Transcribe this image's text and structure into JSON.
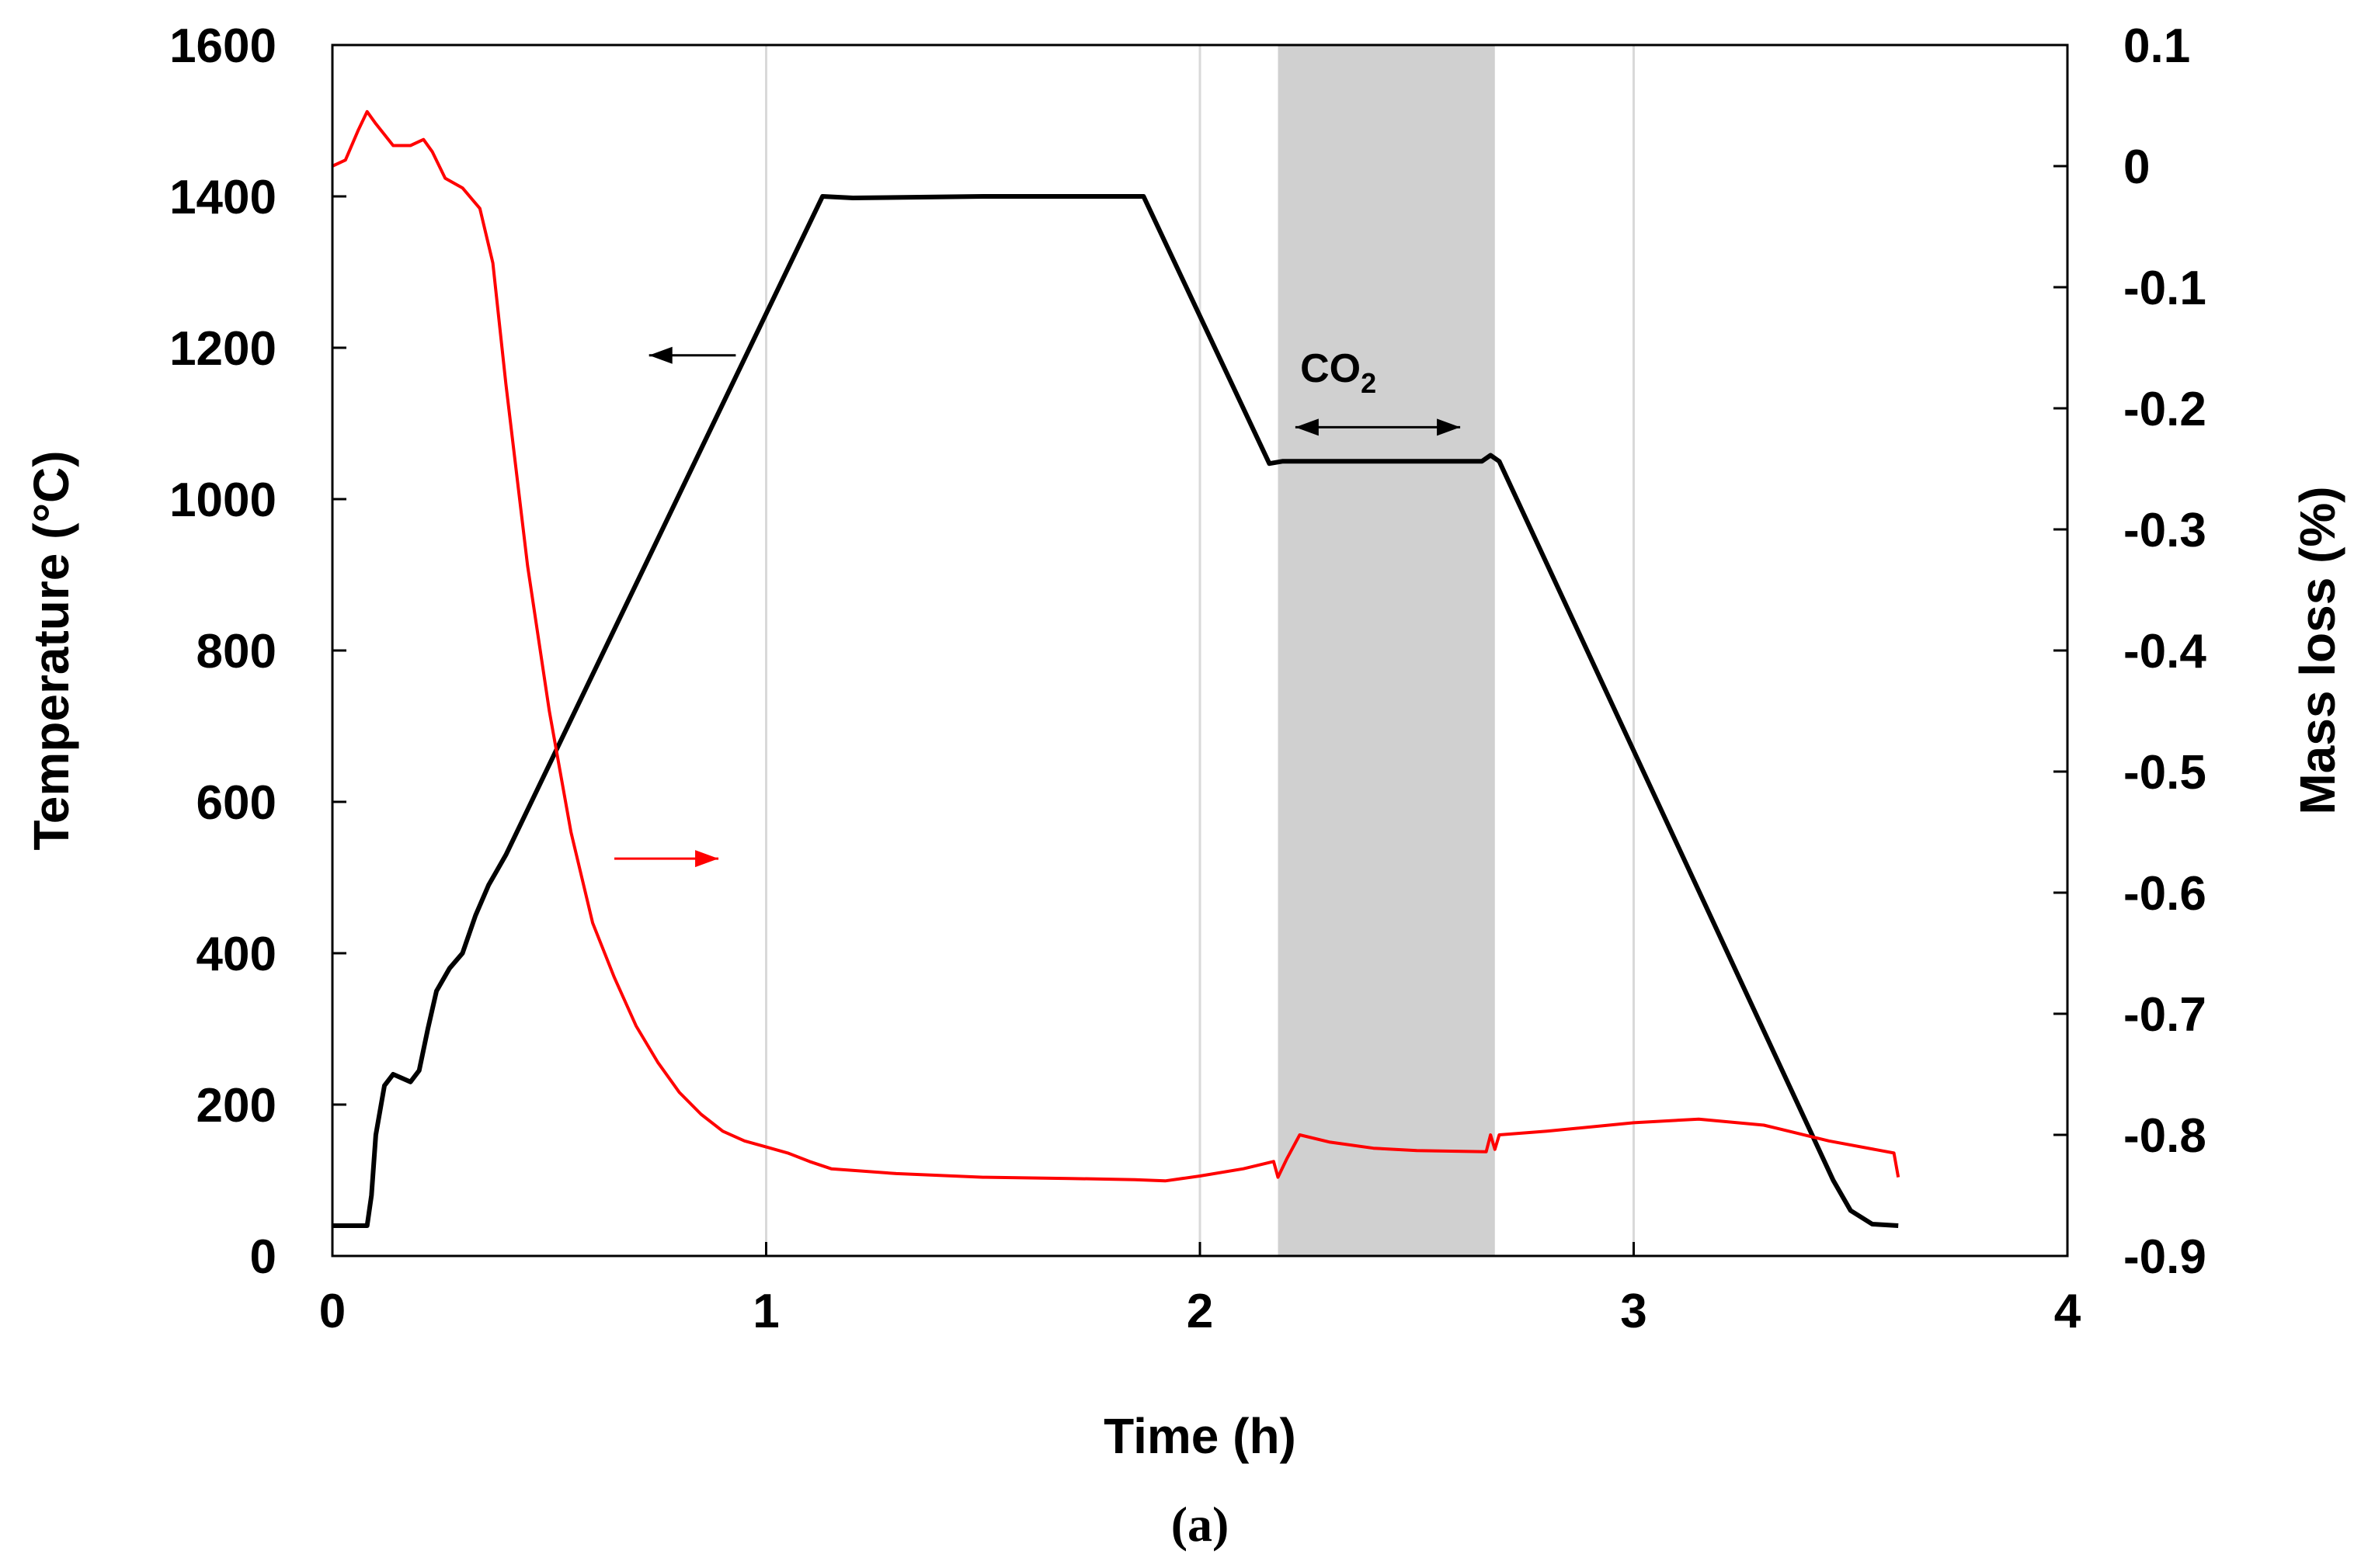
{
  "chart_data": {
    "type": "line",
    "caption": "(a)",
    "xlabel": "Time (h)",
    "ylabel_left": "Temperature (°C)",
    "ylabel_right": "Mass loss (%)",
    "xlim": [
      0,
      4
    ],
    "ylim_left": [
      0,
      1600
    ],
    "ylim_right": [
      -0.9,
      0.1
    ],
    "x_ticks": [
      "0",
      "1",
      "2",
      "3",
      "4"
    ],
    "y_left_ticks": [
      "0",
      "200",
      "400",
      "600",
      "800",
      "1000",
      "1200",
      "1400",
      "1600"
    ],
    "y_right_ticks": [
      "-0.9",
      "-0.8",
      "-0.7",
      "-0.6",
      "-0.5",
      "-0.4",
      "-0.3",
      "-0.2",
      "-0.1",
      "0",
      "0.1"
    ],
    "grid": "vertical",
    "shaded_region": {
      "x_start": 2.18,
      "x_end": 2.68,
      "label_main": "CO",
      "label_sub": "2",
      "color": "#d0d0d0"
    },
    "series": [
      {
        "name": "Temperature",
        "axis": "left",
        "color": "#000000",
        "points": [
          [
            0,
            40
          ],
          [
            0.08,
            40
          ],
          [
            0.09,
            80
          ],
          [
            0.1,
            160
          ],
          [
            0.12,
            225
          ],
          [
            0.14,
            240
          ],
          [
            0.16,
            235
          ],
          [
            0.18,
            230
          ],
          [
            0.2,
            245
          ],
          [
            0.22,
            300
          ],
          [
            0.24,
            350
          ],
          [
            0.27,
            380
          ],
          [
            0.3,
            400
          ],
          [
            0.33,
            450
          ],
          [
            0.36,
            490
          ],
          [
            0.4,
            530
          ],
          [
            1.13,
            1400
          ],
          [
            1.2,
            1398
          ],
          [
            1.5,
            1400
          ],
          [
            1.87,
            1400
          ],
          [
            2.16,
            1047
          ],
          [
            2.19,
            1050
          ],
          [
            2.3,
            1050
          ],
          [
            2.65,
            1050
          ],
          [
            2.67,
            1058
          ],
          [
            2.69,
            1050
          ],
          [
            3.46,
            100
          ],
          [
            3.5,
            60
          ],
          [
            3.55,
            42
          ],
          [
            3.61,
            40
          ]
        ]
      },
      {
        "name": "Mass loss",
        "axis": "right",
        "color": "#ff0000",
        "points": [
          [
            0,
            0
          ],
          [
            0.03,
            0.005
          ],
          [
            0.06,
            0.03
          ],
          [
            0.08,
            0.045
          ],
          [
            0.1,
            0.035
          ],
          [
            0.14,
            0.017
          ],
          [
            0.18,
            0.017
          ],
          [
            0.21,
            0.022
          ],
          [
            0.23,
            0.012
          ],
          [
            0.26,
            -0.01
          ],
          [
            0.3,
            -0.018
          ],
          [
            0.34,
            -0.035
          ],
          [
            0.37,
            -0.08
          ],
          [
            0.4,
            -0.18
          ],
          [
            0.45,
            -0.33
          ],
          [
            0.5,
            -0.45
          ],
          [
            0.55,
            -0.55
          ],
          [
            0.6,
            -0.625
          ],
          [
            0.65,
            -0.67
          ],
          [
            0.7,
            -0.71
          ],
          [
            0.75,
            -0.74
          ],
          [
            0.8,
            -0.765
          ],
          [
            0.85,
            -0.783
          ],
          [
            0.9,
            -0.797
          ],
          [
            0.95,
            -0.805
          ],
          [
            1.0,
            -0.81
          ],
          [
            1.05,
            -0.815
          ],
          [
            1.1,
            -0.822
          ],
          [
            1.15,
            -0.828
          ],
          [
            1.3,
            -0.832
          ],
          [
            1.5,
            -0.835
          ],
          [
            1.7,
            -0.836
          ],
          [
            1.85,
            -0.837
          ],
          [
            1.92,
            -0.838
          ],
          [
            2.0,
            -0.834
          ],
          [
            2.1,
            -0.828
          ],
          [
            2.17,
            -0.822
          ],
          [
            2.18,
            -0.835
          ],
          [
            2.2,
            -0.82
          ],
          [
            2.23,
            -0.8
          ],
          [
            2.3,
            -0.806
          ],
          [
            2.4,
            -0.811
          ],
          [
            2.5,
            -0.813
          ],
          [
            2.66,
            -0.814
          ],
          [
            2.67,
            -0.8
          ],
          [
            2.68,
            -0.812
          ],
          [
            2.69,
            -0.8
          ],
          [
            2.8,
            -0.797
          ],
          [
            3.0,
            -0.79
          ],
          [
            3.15,
            -0.787
          ],
          [
            3.3,
            -0.792
          ],
          [
            3.45,
            -0.805
          ],
          [
            3.6,
            -0.815
          ],
          [
            3.61,
            -0.835
          ]
        ]
      }
    ],
    "annotations": [
      {
        "type": "arrow",
        "target_axis": "left",
        "x_start": 0.93,
        "x_end": 0.73,
        "y": 1190,
        "axis": "left",
        "color": "#000000"
      },
      {
        "type": "arrow",
        "target_axis": "right",
        "x_start": 0.65,
        "x_end": 0.89,
        "y": 525,
        "axis": "left",
        "color": "#ff0000"
      },
      {
        "type": "double-arrow",
        "x_start": 2.22,
        "x_end": 2.6,
        "y": 1095,
        "axis": "left",
        "color": "#000000"
      }
    ]
  }
}
